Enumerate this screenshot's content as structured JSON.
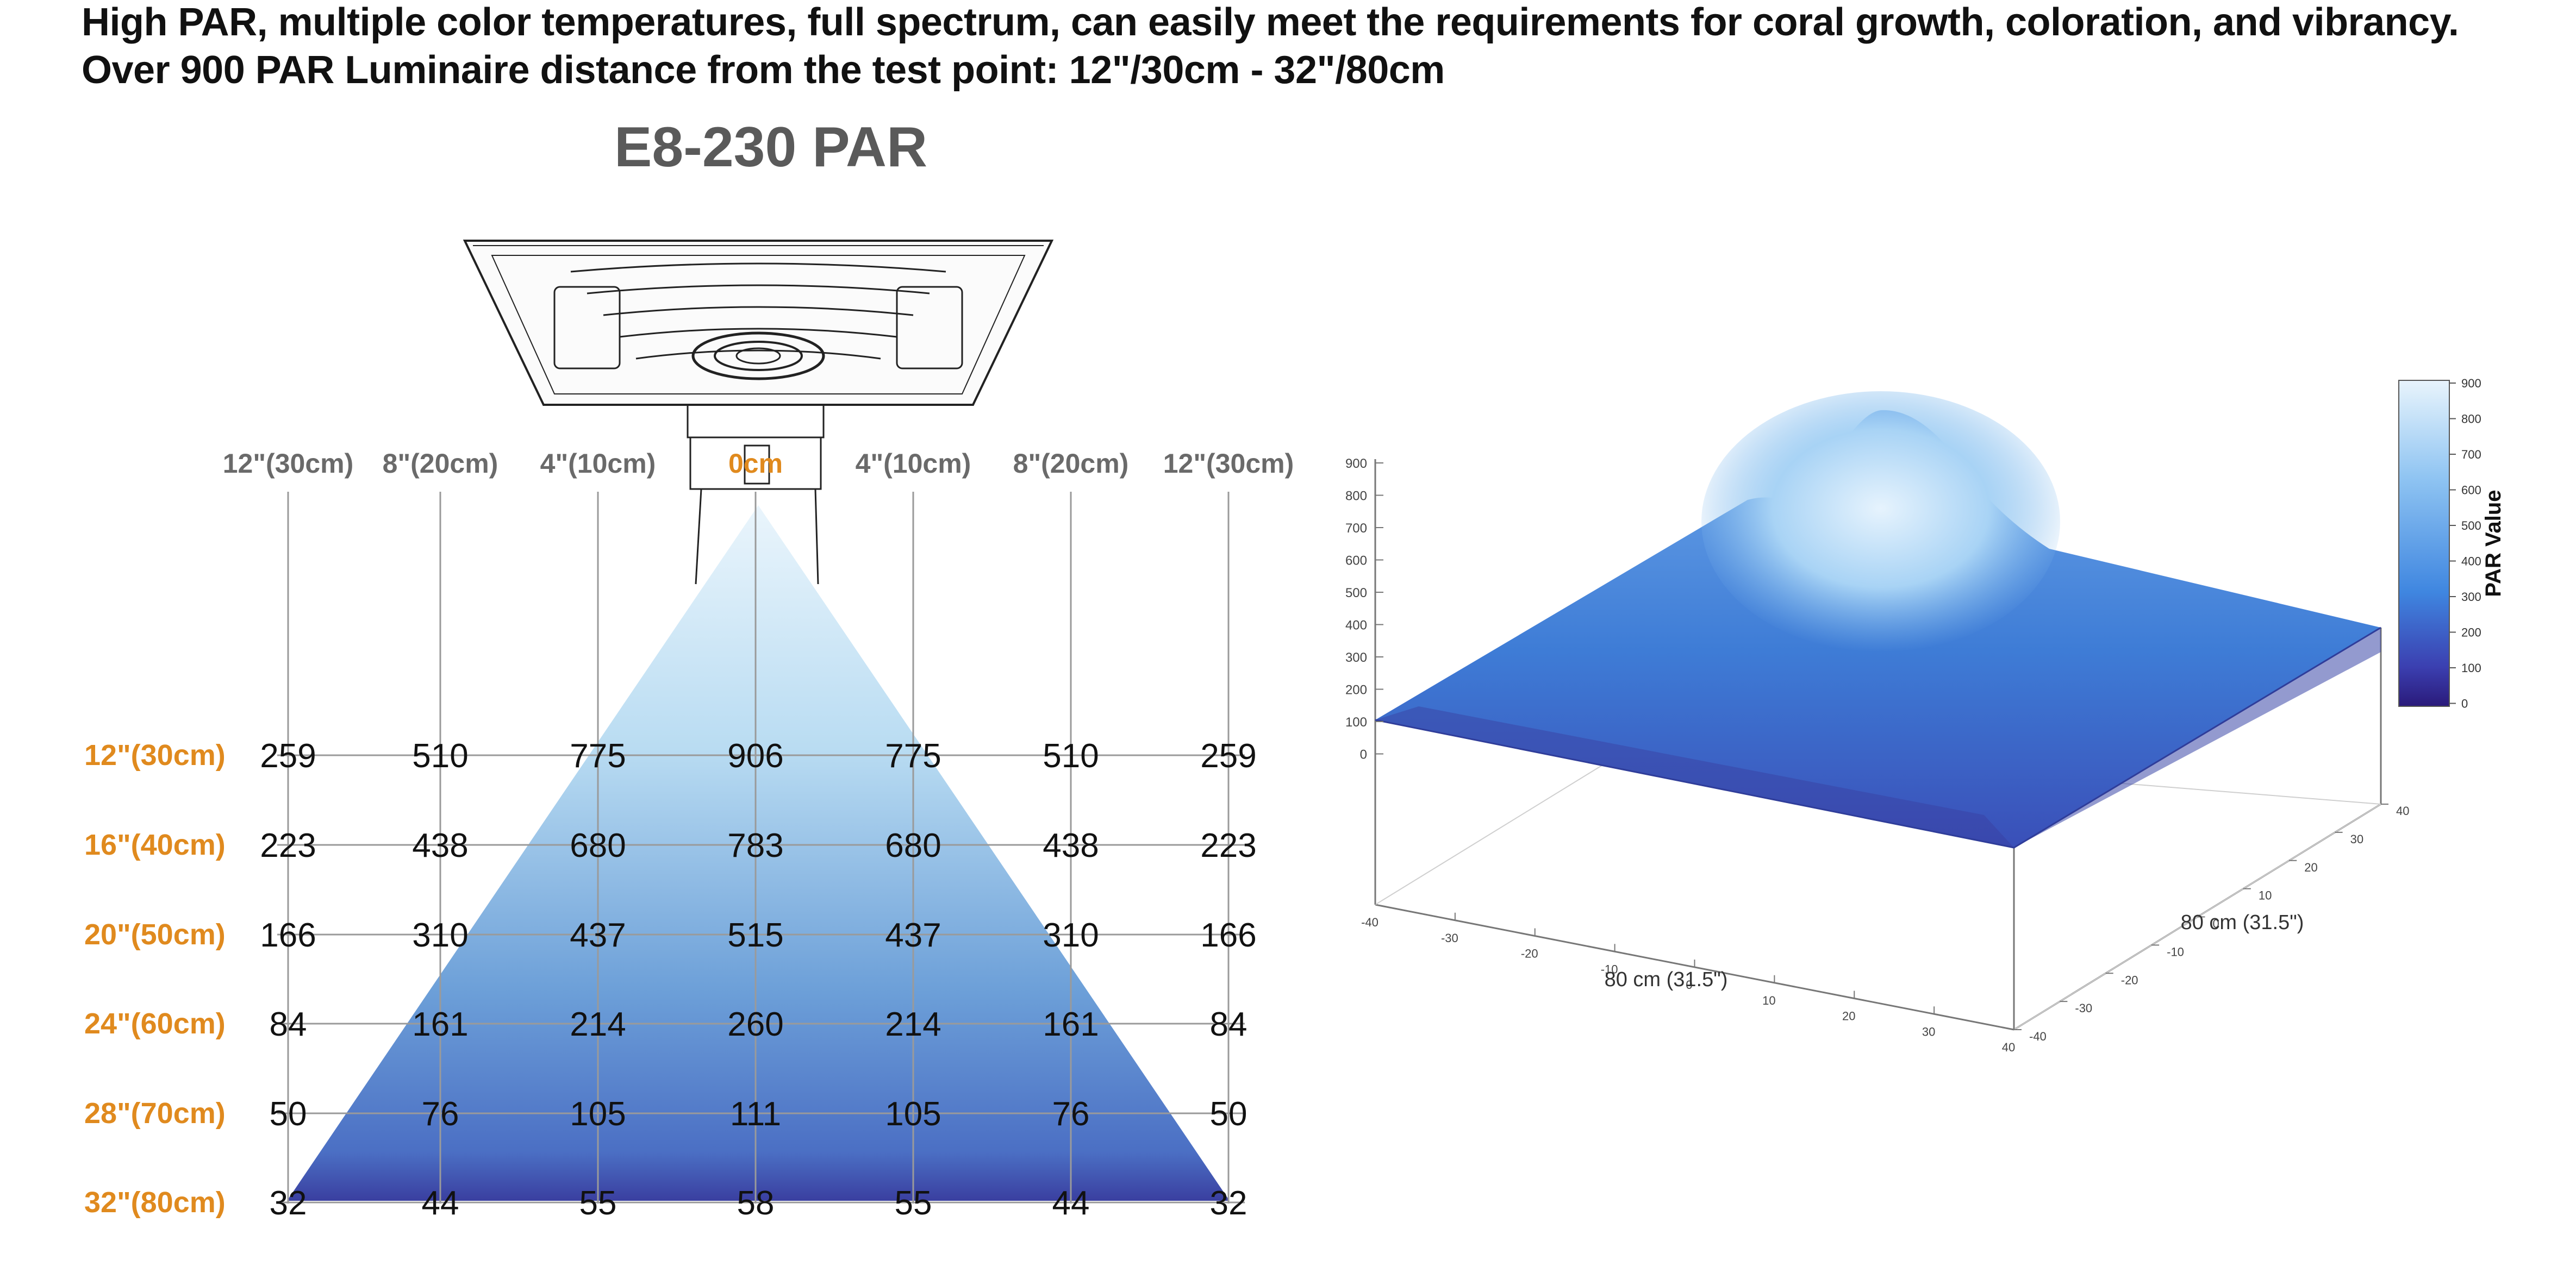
{
  "header": {
    "line1": "High PAR, multiple color temperatures, full spectrum, can easily meet the requirements for coral growth, coloration, and vibrancy.",
    "line2": "Over 900 PAR Luminaire distance from the test point: 12\"/30cm - 32\"/80cm",
    "model": "E8-230 PAR"
  },
  "colors": {
    "accent": "#e08a1e",
    "grid": "#9a9a9a",
    "text": "#111111",
    "model": "#5a5a5a",
    "beam_top": "#d8ecfa",
    "beam_bottom": "#2f3e9e"
  },
  "icons": {
    "fixture": "led-fixture-icon"
  },
  "chart_data": [
    {
      "type": "table",
      "columns": [
        "12\"(30cm)",
        "8\"(20cm)",
        "4\"(10cm)",
        "0cm",
        "4\"(10cm)",
        "8\"(20cm)",
        "12\"(30cm)"
      ],
      "rows": [
        {
          "depth": "12\"(30cm)",
          "values": [
            259,
            510,
            775,
            906,
            775,
            510,
            259
          ]
        },
        {
          "depth": "16\"(40cm)",
          "values": [
            223,
            438,
            680,
            783,
            680,
            438,
            223
          ]
        },
        {
          "depth": "20\"(50cm)",
          "values": [
            166,
            310,
            437,
            515,
            437,
            310,
            166
          ]
        },
        {
          "depth": "24\"(60cm)",
          "values": [
            84,
            161,
            214,
            260,
            214,
            161,
            84
          ]
        },
        {
          "depth": "28\"(70cm)",
          "values": [
            50,
            76,
            105,
            111,
            105,
            76,
            50
          ]
        },
        {
          "depth": "32\"(80cm)",
          "values": [
            32,
            44,
            55,
            58,
            55,
            44,
            32
          ]
        }
      ]
    },
    {
      "type": "surface",
      "z_label_ticks": [
        "900",
        "800",
        "700",
        "600",
        "500",
        "400",
        "300",
        "200",
        "100",
        "0"
      ],
      "zlim": [
        0,
        900
      ],
      "peak": 900,
      "edge_min": 100,
      "x_ticks": [
        "-40",
        "-30",
        "-20",
        "-10",
        "0",
        "10",
        "20",
        "30",
        "40"
      ],
      "y_ticks": [
        "-40",
        "-30",
        "-20",
        "-10",
        "0",
        "10",
        "20",
        "30",
        "40"
      ],
      "xlabel": "80 cm (31.5\")",
      "ylabel": "80 cm (31.5\")",
      "colorbar": {
        "label": "PAR Value",
        "ticks": [
          "900",
          "800",
          "700",
          "600",
          "500",
          "400",
          "300",
          "200",
          "100",
          "0"
        ],
        "range": [
          0,
          900
        ]
      }
    }
  ]
}
